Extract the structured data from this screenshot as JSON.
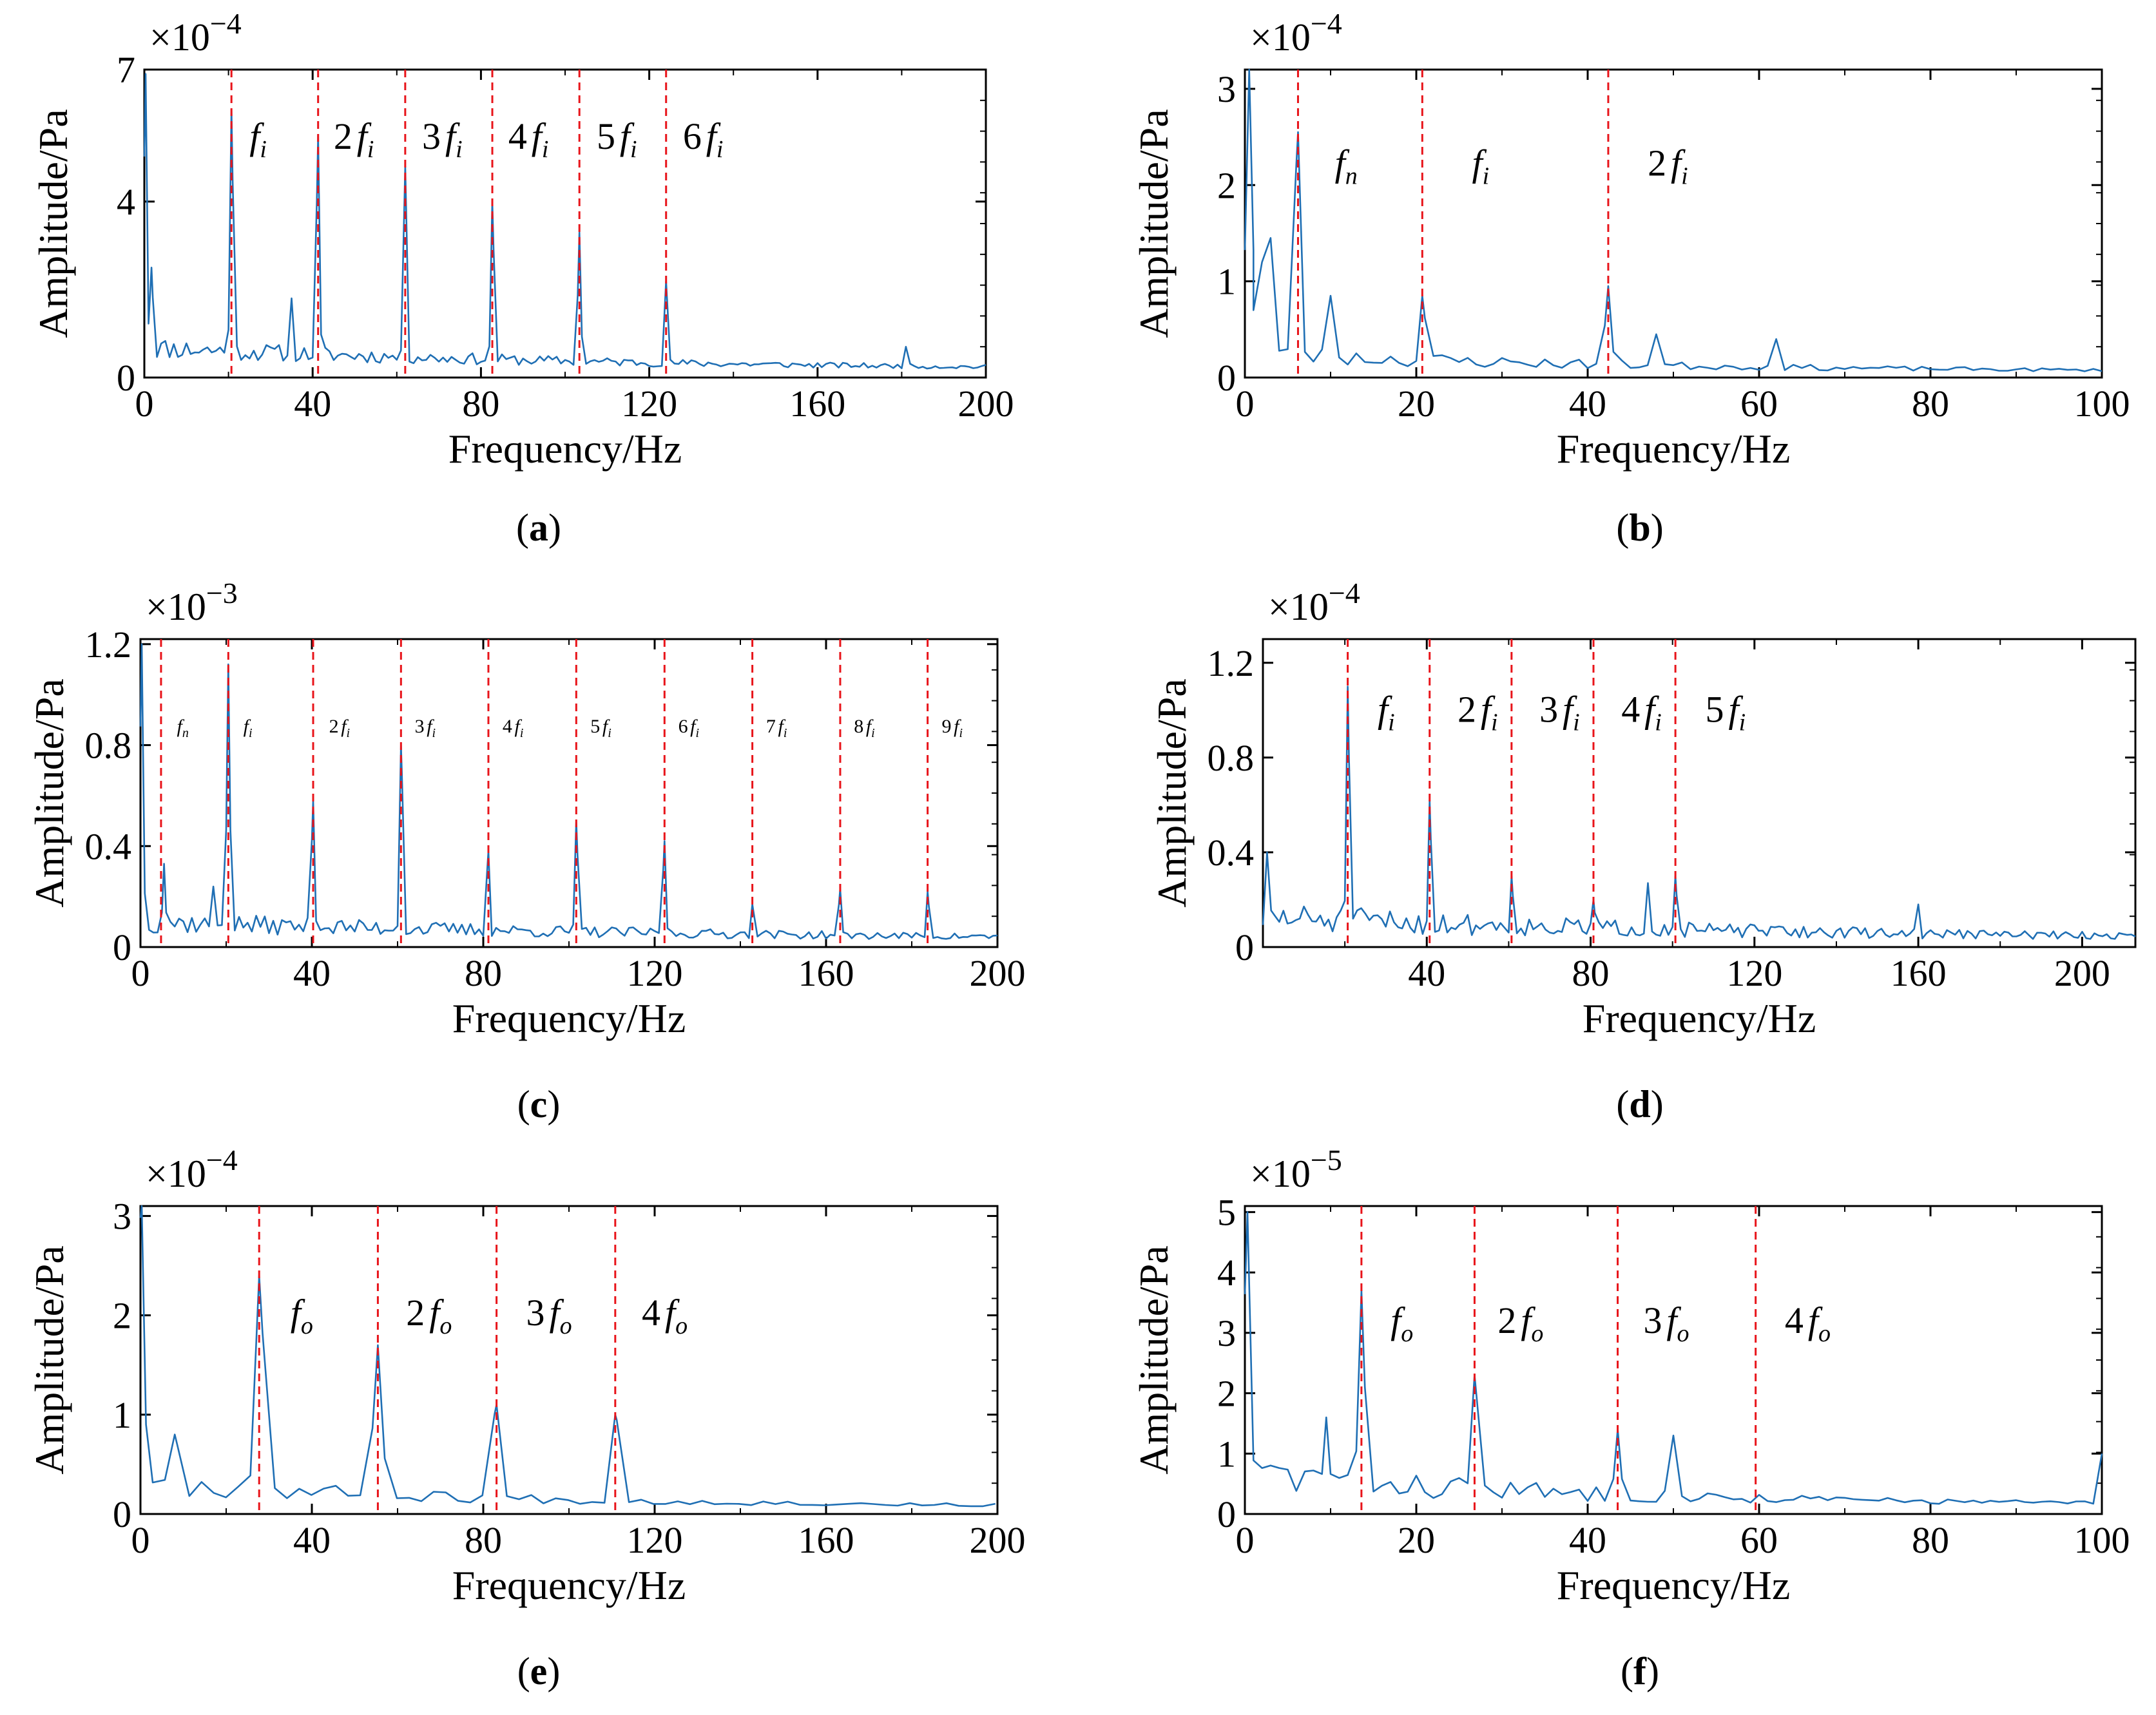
{
  "figure": {
    "captions": [
      "a",
      "b",
      "c",
      "d",
      "e",
      "f"
    ]
  },
  "style": {
    "series_color": "#1f6fb4",
    "marker_color": "#e8141a",
    "axis_color": "#000000"
  },
  "chart_data": [
    {
      "id": "a",
      "type": "line",
      "xlabel": "Frequency/Hz",
      "ylabel": "Amplitude/Pa",
      "multiplier": "×10",
      "exponent": "−4",
      "xlim": [
        0,
        200
      ],
      "ylim": [
        0,
        7
      ],
      "xticks": [
        0,
        40,
        80,
        120,
        160,
        200
      ],
      "yticks": [
        0,
        4,
        7
      ],
      "marker_x": [
        20.7,
        41.3,
        62,
        82.7,
        103.4,
        124
      ],
      "markers": [
        {
          "coef": "",
          "sub": "i",
          "x": 25
        },
        {
          "coef": "2",
          "sub": "i",
          "x": 45
        },
        {
          "coef": "3",
          "sub": "i",
          "x": 66
        },
        {
          "coef": "4",
          "sub": "i",
          "x": 86.5
        },
        {
          "coef": "5",
          "sub": "i",
          "x": 107.5
        },
        {
          "coef": "6",
          "sub": "i",
          "x": 128
        }
      ],
      "label_y": 5.2,
      "label_size": 58,
      "seed": 11,
      "noise_base": 0.55,
      "noise_amp": 0.5,
      "noise_decay": 120,
      "dx": 1.0,
      "peaks": [
        {
          "x": 0.3,
          "y": 6.9
        },
        {
          "x": 1.7,
          "y": 2.5
        },
        {
          "x": 20.7,
          "y": 6.1
        },
        {
          "x": 41.3,
          "y": 5.5
        },
        {
          "x": 62,
          "y": 4.8
        },
        {
          "x": 82.7,
          "y": 4.0
        },
        {
          "x": 103.4,
          "y": 3.3
        },
        {
          "x": 124,
          "y": 2.2
        },
        {
          "x": 35,
          "y": 1.8
        },
        {
          "x": 181,
          "y": 0.7
        }
      ]
    },
    {
      "id": "b",
      "type": "line",
      "xlabel": "Frequency/Hz",
      "ylabel": "Amplitude/Pa",
      "multiplier": "×10",
      "exponent": "−4",
      "xlim": [
        0,
        100
      ],
      "ylim": [
        0,
        3.2
      ],
      "xticks": [
        0,
        20,
        40,
        60,
        80,
        100
      ],
      "yticks": [
        0,
        1,
        2,
        3
      ],
      "marker_x": [
        6.2,
        20.7,
        42.4
      ],
      "markers": [
        {
          "coef": "",
          "sub": "n",
          "x": 10.5
        },
        {
          "coef": "",
          "sub": "i",
          "x": 26.5
        },
        {
          "coef": "2",
          "sub": "i",
          "x": 47
        }
      ],
      "label_y": 2.1,
      "label_size": 58,
      "seed": 23,
      "noise_base": 0.2,
      "noise_amp": 0.22,
      "noise_decay": 50,
      "dx": 1.0,
      "peaks": [
        {
          "x": 0.5,
          "y": 3.2
        },
        {
          "x": 1,
          "y": 0.7
        },
        {
          "x": 2,
          "y": 1.2
        },
        {
          "x": 3,
          "y": 1.45
        },
        {
          "x": 6.2,
          "y": 2.55
        },
        {
          "x": 10,
          "y": 0.85
        },
        {
          "x": 20.7,
          "y": 0.85
        },
        {
          "x": 42.4,
          "y": 0.95
        },
        {
          "x": 48,
          "y": 0.45
        },
        {
          "x": 62,
          "y": 0.4
        }
      ]
    },
    {
      "id": "c",
      "type": "line",
      "xlabel": "Frequency/Hz",
      "ylabel": "Amplitude/Pa",
      "multiplier": "×10",
      "exponent": "−3",
      "xlim": [
        0,
        200
      ],
      "ylim": [
        0,
        1.22
      ],
      "xticks": [
        0,
        40,
        80,
        120,
        160,
        200
      ],
      "yticks": [
        0,
        0.4,
        0.8,
        1.2
      ],
      "marker_x": [
        4.8,
        20.5,
        40.3,
        60.8,
        81.2,
        101.7,
        122.3,
        142.8,
        163.3,
        183.7
      ],
      "markers": [
        {
          "coef": "",
          "sub": "n",
          "x": 8.5
        },
        {
          "coef": "",
          "sub": "i",
          "x": 24
        },
        {
          "coef": "2",
          "sub": "i",
          "x": 44
        },
        {
          "coef": "3",
          "sub": "i",
          "x": 64
        },
        {
          "coef": "4",
          "sub": "i",
          "x": 84.5
        },
        {
          "coef": "5",
          "sub": "i",
          "x": 105
        },
        {
          "coef": "6",
          "sub": "i",
          "x": 125.5
        },
        {
          "coef": "7",
          "sub": "i",
          "x": 146
        },
        {
          "coef": "8",
          "sub": "i",
          "x": 166.5
        },
        {
          "coef": "9",
          "sub": "i",
          "x": 187
        }
      ],
      "label_y": 0.85,
      "label_size": 30,
      "seed": 37,
      "noise_base": 0.08,
      "noise_amp": 0.09,
      "noise_decay": 150,
      "dx": 1.0,
      "peaks": [
        {
          "x": 0.3,
          "y": 1.2
        },
        {
          "x": 5.5,
          "y": 0.33
        },
        {
          "x": 17,
          "y": 0.24
        },
        {
          "x": 20.5,
          "y": 1.12
        },
        {
          "x": 40.3,
          "y": 0.58
        },
        {
          "x": 60.8,
          "y": 0.8
        },
        {
          "x": 81.2,
          "y": 0.38
        },
        {
          "x": 101.7,
          "y": 0.5
        },
        {
          "x": 122.3,
          "y": 0.42
        },
        {
          "x": 142.8,
          "y": 0.17
        },
        {
          "x": 163.3,
          "y": 0.23
        },
        {
          "x": 183.7,
          "y": 0.22
        }
      ]
    },
    {
      "id": "d",
      "type": "line",
      "xlabel": "Frequency/Hz",
      "ylabel": "Amplitude/Pa",
      "multiplier": "×10",
      "exponent": "−4",
      "xlim": [
        0,
        213
      ],
      "ylim": [
        0,
        1.3
      ],
      "xticks": [
        40,
        80,
        120,
        160,
        200
      ],
      "yticks": [
        0,
        0.4,
        0.8,
        1.2
      ],
      "marker_x": [
        20.7,
        40.7,
        60.7,
        80.7,
        100.7
      ],
      "markers": [
        {
          "coef": "",
          "sub": "i",
          "x": 28
        },
        {
          "coef": "2",
          "sub": "i",
          "x": 47.5
        },
        {
          "coef": "3",
          "sub": "i",
          "x": 67.5
        },
        {
          "coef": "4",
          "sub": "i",
          "x": 87.5
        },
        {
          "coef": "5",
          "sub": "i",
          "x": 108
        }
      ],
      "label_y": 0.95,
      "label_size": 58,
      "seed": 51,
      "noise_base": 0.1,
      "noise_amp": 0.13,
      "noise_decay": 140,
      "dx": 1.0,
      "peaks": [
        {
          "x": 1,
          "y": 0.4
        },
        {
          "x": 20.7,
          "y": 1.1
        },
        {
          "x": 40.7,
          "y": 0.62
        },
        {
          "x": 60.7,
          "y": 0.3
        },
        {
          "x": 80.7,
          "y": 0.2
        },
        {
          "x": 94,
          "y": 0.27
        },
        {
          "x": 100.7,
          "y": 0.3
        },
        {
          "x": 160,
          "y": 0.18
        }
      ]
    },
    {
      "id": "e",
      "type": "line",
      "xlabel": "Frequency/Hz",
      "ylabel": "Amplitude/Pa",
      "multiplier": "×10",
      "exponent": "−4",
      "xlim": [
        0,
        200
      ],
      "ylim": [
        0,
        3.1
      ],
      "xticks": [
        0,
        40,
        80,
        120,
        160,
        200
      ],
      "yticks": [
        0,
        1,
        2,
        3
      ],
      "marker_x": [
        27.7,
        55.4,
        83.1,
        110.8
      ],
      "markers": [
        {
          "coef": "",
          "sub": "o",
          "x": 35
        },
        {
          "coef": "2",
          "sub": "o",
          "x": 62
        },
        {
          "coef": "3",
          "sub": "o",
          "x": 90
        },
        {
          "coef": "4",
          "sub": "o",
          "x": 117
        }
      ],
      "label_y": 1.9,
      "label_size": 58,
      "seed": 67,
      "noise_base": 0.25,
      "noise_amp": 0.25,
      "noise_decay": 90,
      "dx": 2.85,
      "peaks": [
        {
          "x": 0.3,
          "y": 3.1
        },
        {
          "x": 1.3,
          "y": 0.9
        },
        {
          "x": 8,
          "y": 0.8
        },
        {
          "x": 27.7,
          "y": 2.4
        },
        {
          "x": 55.4,
          "y": 1.7
        },
        {
          "x": 83.1,
          "y": 1.1
        },
        {
          "x": 110.8,
          "y": 1.0
        }
      ]
    },
    {
      "id": "f",
      "type": "line",
      "xlabel": "Frequency/Hz",
      "ylabel": "Amplitude/Pa",
      "multiplier": "×10",
      "exponent": "−5",
      "xlim": [
        0,
        100
      ],
      "ylim": [
        0,
        5.1
      ],
      "xticks": [
        0,
        20,
        40,
        60,
        80,
        100
      ],
      "yticks": [
        0,
        1,
        2,
        3,
        4,
        5
      ],
      "marker_x": [
        13.6,
        26.8,
        43.5,
        59.6
      ],
      "markers": [
        {
          "coef": "",
          "sub": "o",
          "x": 17
        },
        {
          "coef": "2",
          "sub": "o",
          "x": 29.5
        },
        {
          "coef": "3",
          "sub": "o",
          "x": 46.5
        },
        {
          "coef": "4",
          "sub": "o",
          "x": 63
        }
      ],
      "label_y": 3.0,
      "label_size": 58,
      "seed": 83,
      "noise_base": 0.55,
      "noise_amp": 0.7,
      "noise_decay": 40,
      "dx": 1.0,
      "peaks": [
        {
          "x": 0.3,
          "y": 5.0
        },
        {
          "x": 9.5,
          "y": 1.6
        },
        {
          "x": 13.6,
          "y": 3.7
        },
        {
          "x": 26.8,
          "y": 2.3
        },
        {
          "x": 43.5,
          "y": 1.4
        },
        {
          "x": 50,
          "y": 1.3
        },
        {
          "x": 100,
          "y": 1.0
        }
      ]
    }
  ]
}
